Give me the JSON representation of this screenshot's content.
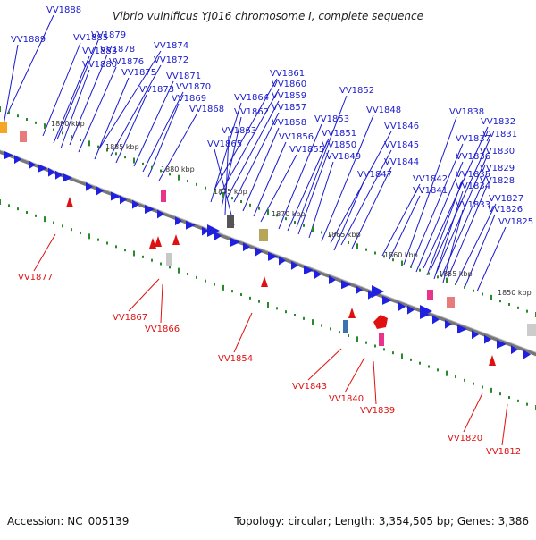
{
  "title": "Vibrio vulnificus YJ016 chromosome I, complete sequence",
  "footer": {
    "accession": "Accession: NC_005139",
    "summary": "Topology: circular; Length: 3,354,505 bp; Genes: 3,386"
  },
  "colors": {
    "upper_label": "#1a1acc",
    "lower_label": "#e01010",
    "forward_gene": "#2020e0",
    "reverse_gene": "#e01010",
    "tick": "#2a8a2a",
    "backbone": "#777777"
  },
  "scale_labels": [
    "1890 kbp",
    "1885 kbp",
    "1880 kbp",
    "1875 kbp",
    "1870 kbp",
    "1865 kbp",
    "1860 kbp",
    "1855 kbp",
    "1850 kbp"
  ],
  "upper_labels": [
    "VV1888",
    "VV1889",
    "VV1885",
    "VV1879",
    "VV1883",
    "VV1878",
    "VV1874",
    "VV1880",
    "VV1876",
    "VV1872",
    "VV1875",
    "VV1873",
    "VV1871",
    "VV1870",
    "VV1869",
    "VV1868",
    "VV1861",
    "VV1860",
    "VV1859",
    "VV1857",
    "VV1864",
    "VV1862",
    "VV1858",
    "VV1863",
    "VV1856",
    "VV1855",
    "VV1865",
    "VV1852",
    "VV1853",
    "VV1851",
    "VV1850",
    "VV1849",
    "VV1848",
    "VV1846",
    "VV1845",
    "VV1844",
    "VV1847",
    "VV1842",
    "VV1841",
    "VV1838",
    "VV1837",
    "VV1832",
    "VV1831",
    "VV1836",
    "VV1830",
    "VV1835",
    "VV1829",
    "VV1834",
    "VV1828",
    "VV1833",
    "VV1827",
    "VV1826",
    "VV1825"
  ],
  "lower_labels": [
    "VV1877",
    "VV1867",
    "VV1866",
    "VV1854",
    "VV1843",
    "VV1840",
    "VV1839",
    "VV1820",
    "VV1812"
  ]
}
